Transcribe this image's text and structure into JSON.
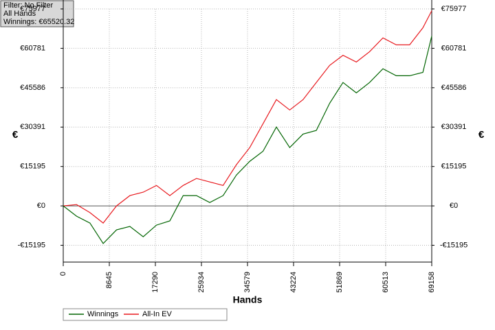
{
  "chart_data": {
    "type": "line",
    "info": [
      "Filter: No Filter",
      "All Hands",
      "Winnings: €65520.32"
    ],
    "xlabel": "Hands",
    "ylabel": "€",
    "y2label": "€",
    "xlim": [
      0,
      69158
    ],
    "xticks": [
      0,
      8645,
      17290,
      25934,
      34579,
      43224,
      51869,
      60513,
      69158
    ],
    "ylim": [
      -21670,
      75977
    ],
    "yticks": [
      {
        "value": -15195,
        "label": "-€15195"
      },
      {
        "value": 0,
        "label": "€0"
      },
      {
        "value": 15195,
        "label": "€15195"
      },
      {
        "value": 30391,
        "label": "€30391"
      },
      {
        "value": 45586,
        "label": "€45586"
      },
      {
        "value": 60781,
        "label": "€60781"
      },
      {
        "value": 75977,
        "label": "€75977"
      }
    ],
    "grid": true,
    "legend": "bottom-left",
    "x": [
      0,
      2500,
      5000,
      7500,
      10000,
      12500,
      15000,
      17500,
      20000,
      22500,
      25000,
      27500,
      30000,
      32500,
      35000,
      37500,
      40000,
      42500,
      45000,
      47500,
      50000,
      52500,
      55000,
      57500,
      60000,
      62500,
      65000,
      67500,
      69158
    ],
    "series": [
      {
        "name": "Winnings",
        "color": "#006400",
        "values": [
          0,
          -3960,
          -6600,
          -14500,
          -9250,
          -7900,
          -11900,
          -7400,
          -5800,
          3960,
          3960,
          1300,
          3960,
          11900,
          17200,
          21100,
          30400,
          22500,
          27700,
          29100,
          39600,
          47600,
          43600,
          47600,
          52900,
          50200,
          50200,
          51500,
          65520
        ]
      },
      {
        "name": "All-In EV",
        "color": "#e8191e",
        "values": [
          0,
          500,
          -2600,
          -6600,
          0,
          3960,
          5300,
          7900,
          3960,
          7900,
          10600,
          9250,
          7900,
          15900,
          22500,
          31700,
          41000,
          37000,
          41000,
          47600,
          54200,
          58100,
          55500,
          59500,
          64800,
          62100,
          62100,
          68700,
          75300
        ]
      }
    ]
  }
}
